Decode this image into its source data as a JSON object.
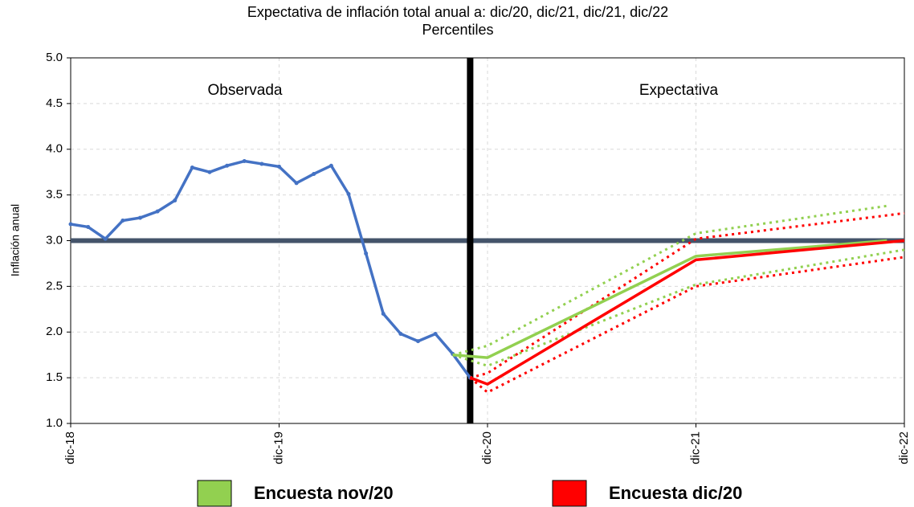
{
  "chart_data": {
    "type": "line",
    "title": "Expectativa de inflación total anual a: dic/20, dic/21, dic/21, dic/22",
    "subtitle": "Percentiles",
    "y_label": "Inflación anual",
    "annotations": [
      "Observada",
      "Expectativa"
    ],
    "xlim": [
      0,
      48
    ],
    "xticks": [
      {
        "value": 0,
        "label": "dic-18"
      },
      {
        "value": 12,
        "label": "dic-19"
      },
      {
        "value": 24,
        "label": "dic-20"
      },
      {
        "value": 36,
        "label": "dic-21"
      },
      {
        "value": 48,
        "label": "dic-22"
      }
    ],
    "ylim": [
      1,
      5
    ],
    "yticks": [
      {
        "value": 1,
        "label": "1.0"
      },
      {
        "value": 1.5,
        "label": "1.5"
      },
      {
        "value": 2,
        "label": "2.0"
      },
      {
        "value": 2.5,
        "label": "2.5"
      },
      {
        "value": 3,
        "label": "3.0"
      },
      {
        "value": 3.5,
        "label": "3.5"
      },
      {
        "value": 4,
        "label": "4.0"
      },
      {
        "value": 4.5,
        "label": "4.5"
      },
      {
        "value": 5,
        "label": "5.0"
      }
    ],
    "grid": true,
    "hline": 3,
    "vline": 23,
    "series": [
      {
        "color": "#4472c4",
        "markers": true,
        "x": [
          0,
          1,
          2,
          3,
          4,
          5,
          6,
          7,
          8,
          9,
          10,
          11,
          12,
          13,
          14,
          15,
          16,
          17,
          18,
          19,
          20,
          21,
          22,
          23
        ],
        "values": [
          3.18,
          3.15,
          3.02,
          3.22,
          3.25,
          3.32,
          3.44,
          3.8,
          3.75,
          3.82,
          3.87,
          3.84,
          3.81,
          3.63,
          3.73,
          3.82,
          3.51,
          2.86,
          2.2,
          1.98,
          1.9,
          1.98,
          1.76,
          1.5
        ]
      },
      {
        "color": "#92d050",
        "dash": true,
        "x": [
          22,
          24,
          36,
          47
        ],
        "values": [
          1.75,
          1.85,
          3.08,
          3.38
        ]
      },
      {
        "color": "#92d050",
        "dash": true,
        "x": [
          22,
          24,
          36,
          48
        ],
        "values": [
          1.75,
          1.63,
          2.52,
          2.9
        ]
      },
      {
        "color": "#ff0000",
        "dash": true,
        "x": [
          23,
          24,
          36,
          48
        ],
        "values": [
          1.5,
          1.55,
          3.02,
          3.3
        ]
      },
      {
        "color": "#ff0000",
        "dash": true,
        "x": [
          23,
          24,
          36,
          48
        ],
        "values": [
          1.5,
          1.34,
          2.5,
          2.82
        ]
      },
      {
        "name": "Encuesta nov/20",
        "color": "#92d050",
        "x": [
          22,
          24,
          36,
          47
        ],
        "values": [
          1.75,
          1.72,
          2.83,
          3.0
        ]
      },
      {
        "name": "Encuesta dic/20",
        "color": "#ff0000",
        "x": [
          23,
          24,
          36,
          48
        ],
        "values": [
          1.5,
          1.43,
          2.79,
          3.0
        ]
      }
    ]
  }
}
